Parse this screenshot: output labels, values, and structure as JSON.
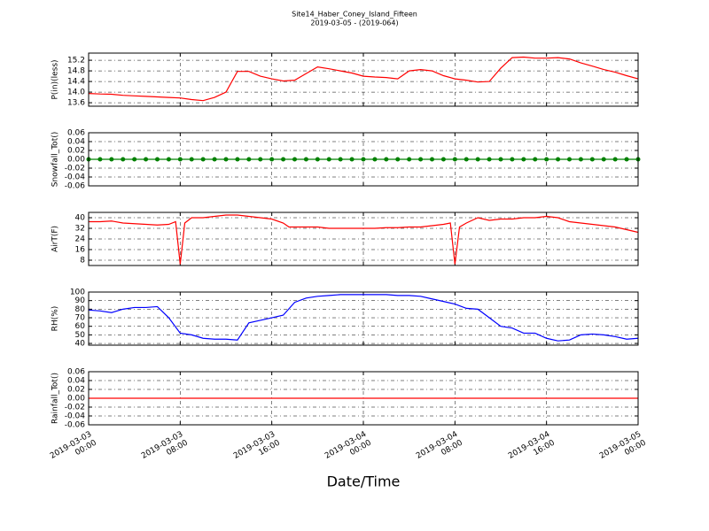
{
  "title": "Site14_Haber_Coney_Island_Fifteen",
  "subtitle": "2019-03-05 - (2019-064)",
  "xlabel": "Date/Time",
  "xlim": [
    0,
    48
  ],
  "xticks": [
    {
      "value": 0,
      "label": "2019-03-03\n00:00"
    },
    {
      "value": 8,
      "label": "2019-03-03\n08:00"
    },
    {
      "value": 16,
      "label": "2019-03-03\n16:00"
    },
    {
      "value": 24,
      "label": "2019-03-04\n00:00"
    },
    {
      "value": 32,
      "label": "2019-03-04\n08:00"
    },
    {
      "value": 40,
      "label": "2019-03-04\n16:00"
    },
    {
      "value": 48,
      "label": "2019-03-05\n00:00"
    }
  ],
  "chart_data": [
    {
      "type": "line",
      "ylabel": "P(in)(less)",
      "ylim": [
        13.47,
        15.47
      ],
      "grid": true,
      "yticks": [
        13.6,
        {
          "value": 14,
          "label": "14.0"
        },
        14.4,
        14.8,
        15.2
      ],
      "x": [
        0,
        1,
        2,
        3,
        4,
        5,
        6,
        7,
        8,
        9,
        10,
        11,
        12,
        13,
        14,
        15,
        16,
        17,
        18,
        19,
        20,
        21,
        22,
        23,
        24,
        25,
        26,
        27,
        28,
        29,
        30,
        31,
        32,
        33,
        34,
        35,
        36,
        37,
        38,
        39,
        40,
        41,
        42,
        43,
        44,
        45,
        46,
        47,
        48
      ],
      "series": [
        {
          "color": "#ff0000",
          "values": [
            13.95,
            13.93,
            13.92,
            13.88,
            13.86,
            13.84,
            13.82,
            13.8,
            13.78,
            13.72,
            13.68,
            13.8,
            14.0,
            14.78,
            14.78,
            14.6,
            14.5,
            14.42,
            14.45,
            14.7,
            14.95,
            14.88,
            14.8,
            14.72,
            14.6,
            14.57,
            14.55,
            14.5,
            14.8,
            14.85,
            14.8,
            14.62,
            14.5,
            14.45,
            14.38,
            14.4,
            14.9,
            15.3,
            15.32,
            15.28,
            15.28,
            15.3,
            15.25,
            15.1,
            14.98,
            14.85,
            14.75,
            14.62,
            14.5
          ]
        }
      ]
    },
    {
      "type": "line",
      "ylabel": "Snowfall_Tot()",
      "ylim": [
        -0.06,
        0.06
      ],
      "grid": true,
      "yticks": [
        -0.06,
        -0.04,
        -0.02,
        {
          "value": 0,
          "label": "0.00"
        },
        0.02,
        0.04,
        0.06
      ],
      "x": [
        0,
        1,
        2,
        3,
        4,
        5,
        6,
        7,
        8,
        9,
        10,
        11,
        12,
        13,
        14,
        15,
        16,
        17,
        18,
        19,
        20,
        21,
        22,
        23,
        24,
        25,
        26,
        27,
        28,
        29,
        30,
        31,
        32,
        33,
        34,
        35,
        36,
        37,
        38,
        39,
        40,
        41,
        42,
        43,
        44,
        45,
        46,
        47,
        48
      ],
      "series": [
        {
          "color": "#008000",
          "marker": "o",
          "values": [
            0,
            0,
            0,
            0,
            0,
            0,
            0,
            0,
            0,
            0,
            0,
            0,
            0,
            0,
            0,
            0,
            0,
            0,
            0,
            0,
            0,
            0,
            0,
            0,
            0,
            0,
            0,
            0,
            0,
            0,
            0,
            0,
            0,
            0,
            0,
            0,
            0,
            0,
            0,
            0,
            0,
            0,
            0,
            0,
            0,
            0,
            0,
            0,
            0
          ]
        }
      ]
    },
    {
      "type": "line",
      "ylabel": "AirT(F)",
      "ylim": [
        4,
        44
      ],
      "grid": true,
      "yticks": [
        8,
        16,
        24,
        32,
        40
      ],
      "x": [
        0,
        1,
        2,
        3,
        4,
        5,
        6,
        7,
        7.6,
        8,
        8.4,
        9,
        10,
        11,
        12,
        13,
        14,
        15,
        16,
        17,
        17.5,
        18,
        19,
        20,
        21,
        22,
        23,
        24,
        25,
        26,
        27,
        28,
        29,
        30,
        31,
        31.6,
        32,
        32.4,
        33,
        34,
        35,
        36,
        37,
        38,
        39,
        40,
        41,
        42,
        43,
        44,
        45,
        46,
        47,
        48
      ],
      "series": [
        {
          "color": "#ff0000",
          "values": [
            37,
            37,
            37.5,
            36,
            35.5,
            35,
            34.5,
            35,
            37,
            5,
            36,
            40,
            40,
            41,
            42,
            42,
            41,
            40,
            39,
            36,
            33,
            33,
            33,
            33,
            32,
            32,
            32,
            32,
            32,
            32.5,
            32.5,
            33,
            33,
            34,
            35,
            36,
            5,
            33,
            36,
            40,
            38,
            39,
            39,
            40,
            40,
            41,
            40,
            37,
            36,
            35,
            34,
            33,
            31,
            29
          ]
        }
      ]
    },
    {
      "type": "line",
      "ylabel": "RH(%)",
      "ylim": [
        38,
        100
      ],
      "grid": true,
      "yticks": [
        40,
        50,
        60,
        70,
        80,
        90,
        100
      ],
      "x": [
        0,
        1,
        2,
        3,
        4,
        5,
        6,
        7,
        8,
        9,
        10,
        11,
        12,
        13,
        14,
        15,
        16,
        17,
        18,
        19,
        20,
        21,
        22,
        23,
        24,
        25,
        26,
        27,
        28,
        29,
        30,
        31,
        32,
        33,
        34,
        35,
        36,
        37,
        38,
        39,
        40,
        41,
        42,
        43,
        44,
        45,
        46,
        47,
        48
      ],
      "series": [
        {
          "color": "#0000ff",
          "values": [
            79,
            78,
            76,
            80,
            82,
            82,
            83,
            70,
            52,
            50,
            46,
            45,
            45,
            44,
            64,
            67,
            70,
            73,
            88,
            93,
            95,
            96,
            97,
            97,
            97,
            97,
            97,
            96,
            96,
            95,
            92,
            89,
            86,
            81,
            80,
            70,
            60,
            58,
            52,
            52,
            46,
            43,
            44,
            50,
            51,
            50,
            48,
            45,
            46
          ]
        }
      ]
    },
    {
      "type": "line",
      "ylabel": "Rainfall_Tot()",
      "ylim": [
        -0.06,
        0.06
      ],
      "grid": true,
      "yticks": [
        -0.06,
        -0.04,
        -0.02,
        {
          "value": 0,
          "label": "0.00"
        },
        0.02,
        0.04,
        0.06
      ],
      "x": [
        0,
        1,
        2,
        3,
        4,
        5,
        6,
        7,
        8,
        9,
        10,
        11,
        12,
        13,
        14,
        15,
        16,
        17,
        18,
        19,
        20,
        21,
        22,
        23,
        24,
        25,
        26,
        27,
        28,
        29,
        30,
        31,
        32,
        33,
        34,
        35,
        36,
        37,
        38,
        39,
        40,
        41,
        42,
        43,
        44,
        45,
        46,
        47,
        48
      ],
      "series": [
        {
          "color": "#ff0000",
          "values": [
            0,
            0,
            0,
            0,
            0,
            0,
            0,
            0,
            0,
            0,
            0,
            0,
            0,
            0,
            0,
            0,
            0,
            0,
            0,
            0,
            0,
            0,
            0,
            0,
            0,
            0,
            0,
            0,
            0,
            0,
            0,
            0,
            0,
            0,
            0,
            0,
            0,
            0,
            0,
            0,
            0,
            0,
            0,
            0,
            0,
            0,
            0,
            0,
            0
          ]
        }
      ]
    }
  ]
}
